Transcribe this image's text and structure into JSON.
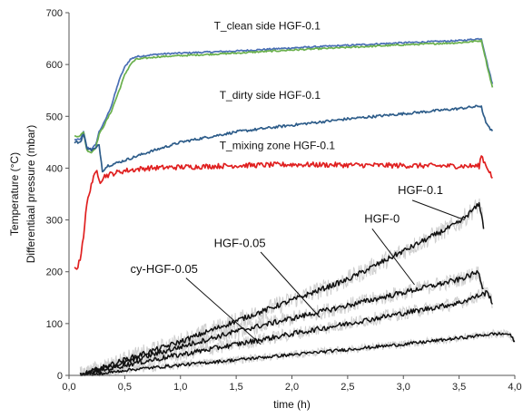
{
  "chart_data": {
    "type": "line",
    "xlabel": "time (h)",
    "ylabel_lines": [
      "Temperature (°C)",
      "Differentiaal pressure (mbar)"
    ],
    "xlim": [
      0,
      4
    ],
    "ylim": [
      0,
      700
    ],
    "x_ticks": [
      "0,0",
      "0,5",
      "1,0",
      "1,5",
      "2,0",
      "2,5",
      "3,0",
      "3,5",
      "4,0"
    ],
    "y_ticks": [
      "0",
      "100",
      "200",
      "300",
      "400",
      "500",
      "600",
      "700"
    ],
    "grid": false,
    "legend": "none",
    "annotations": [
      {
        "text": "T_clean side HGF-0.1"
      },
      {
        "text": "T_dirty side HGF-0.1"
      },
      {
        "text": "T_mixing zone HGF-0.1"
      },
      {
        "text": "HGF-0.1"
      },
      {
        "text": "HGF-0"
      },
      {
        "text": "HGF-0.05"
      },
      {
        "text": "cy-HGF-0.05"
      }
    ],
    "series": [
      {
        "color": "#4a6fb5",
        "points": [
          [
            0.05,
            455
          ],
          [
            0.1,
            455
          ],
          [
            0.13,
            470
          ],
          [
            0.16,
            440
          ],
          [
            0.2,
            437
          ],
          [
            0.24,
            445
          ],
          [
            0.27,
            470
          ],
          [
            0.32,
            490
          ],
          [
            0.38,
            520
          ],
          [
            0.45,
            570
          ],
          [
            0.5,
            595
          ],
          [
            0.55,
            610
          ],
          [
            0.6,
            615
          ],
          [
            0.8,
            620
          ],
          [
            1.0,
            622
          ],
          [
            1.5,
            626
          ],
          [
            2.0,
            632
          ],
          [
            2.5,
            637
          ],
          [
            3.0,
            642
          ],
          [
            3.5,
            646
          ],
          [
            3.7,
            650
          ],
          [
            3.72,
            632
          ],
          [
            3.76,
            595
          ],
          [
            3.8,
            562
          ]
        ]
      },
      {
        "color": "#6ab04c",
        "points": [
          [
            0.05,
            462
          ],
          [
            0.1,
            462
          ],
          [
            0.13,
            470
          ],
          [
            0.16,
            435
          ],
          [
            0.2,
            430
          ],
          [
            0.24,
            440
          ],
          [
            0.27,
            465
          ],
          [
            0.32,
            485
          ],
          [
            0.38,
            510
          ],
          [
            0.45,
            550
          ],
          [
            0.5,
            580
          ],
          [
            0.55,
            600
          ],
          [
            0.6,
            610
          ],
          [
            0.8,
            615
          ],
          [
            1.0,
            617
          ],
          [
            1.5,
            622
          ],
          [
            2.0,
            628
          ],
          [
            2.5,
            633
          ],
          [
            3.0,
            638
          ],
          [
            3.5,
            642
          ],
          [
            3.7,
            646
          ],
          [
            3.72,
            628
          ],
          [
            3.76,
            590
          ],
          [
            3.8,
            555
          ]
        ]
      },
      {
        "color": "#2e5d8a",
        "points": [
          [
            0.05,
            450
          ],
          [
            0.1,
            450
          ],
          [
            0.13,
            465
          ],
          [
            0.16,
            440
          ],
          [
            0.2,
            435
          ],
          [
            0.24,
            438
          ],
          [
            0.27,
            445
          ],
          [
            0.3,
            395
          ],
          [
            0.35,
            405
          ],
          [
            0.4,
            408
          ],
          [
            0.5,
            415
          ],
          [
            0.7,
            430
          ],
          [
            1.0,
            450
          ],
          [
            1.5,
            470
          ],
          [
            2.0,
            483
          ],
          [
            2.5,
            495
          ],
          [
            3.0,
            505
          ],
          [
            3.5,
            515
          ],
          [
            3.7,
            520
          ],
          [
            3.72,
            500
          ],
          [
            3.76,
            480
          ],
          [
            3.8,
            470
          ]
        ]
      },
      {
        "color": "#e02020",
        "points": [
          [
            0.05,
            207
          ],
          [
            0.08,
            210
          ],
          [
            0.1,
            225
          ],
          [
            0.13,
            270
          ],
          [
            0.16,
            330
          ],
          [
            0.2,
            370
          ],
          [
            0.25,
            395
          ],
          [
            0.28,
            375
          ],
          [
            0.32,
            385
          ],
          [
            0.4,
            390
          ],
          [
            0.5,
            395
          ],
          [
            0.7,
            400
          ],
          [
            1.0,
            402
          ],
          [
            1.5,
            405
          ],
          [
            2.0,
            407
          ],
          [
            2.5,
            406
          ],
          [
            3.0,
            405
          ],
          [
            3.5,
            404
          ],
          [
            3.68,
            404
          ],
          [
            3.7,
            425
          ],
          [
            3.73,
            410
          ],
          [
            3.77,
            395
          ],
          [
            3.8,
            380
          ]
        ]
      },
      {
        "color": "#111111",
        "points": [
          [
            0.1,
            0
          ],
          [
            0.5,
            30
          ],
          [
            1.0,
            65
          ],
          [
            1.5,
            105
          ],
          [
            2.0,
            145
          ],
          [
            2.5,
            185
          ],
          [
            3.0,
            240
          ],
          [
            3.5,
            295
          ],
          [
            3.68,
            330
          ],
          [
            3.7,
            315
          ],
          [
            3.72,
            280
          ]
        ]
      },
      {
        "color": "#111111",
        "points": [
          [
            0.1,
            0
          ],
          [
            0.5,
            25
          ],
          [
            1.0,
            55
          ],
          [
            1.5,
            85
          ],
          [
            2.0,
            110
          ],
          [
            2.5,
            135
          ],
          [
            3.0,
            160
          ],
          [
            3.5,
            185
          ],
          [
            3.68,
            200
          ],
          [
            3.7,
            175
          ],
          [
            3.72,
            170
          ]
        ]
      },
      {
        "color": "#111111",
        "points": [
          [
            0.1,
            0
          ],
          [
            0.5,
            20
          ],
          [
            1.0,
            40
          ],
          [
            1.5,
            60
          ],
          [
            2.0,
            80
          ],
          [
            2.5,
            100
          ],
          [
            3.0,
            120
          ],
          [
            3.5,
            140
          ],
          [
            3.75,
            160
          ],
          [
            3.78,
            150
          ],
          [
            3.8,
            140
          ]
        ]
      },
      {
        "color": "#111111",
        "points": [
          [
            0.2,
            0
          ],
          [
            0.5,
            10
          ],
          [
            1.0,
            20
          ],
          [
            1.5,
            30
          ],
          [
            2.0,
            40
          ],
          [
            2.5,
            50
          ],
          [
            3.0,
            60
          ],
          [
            3.5,
            72
          ],
          [
            3.8,
            80
          ],
          [
            3.95,
            80
          ],
          [
            4.0,
            65
          ]
        ]
      }
    ]
  }
}
